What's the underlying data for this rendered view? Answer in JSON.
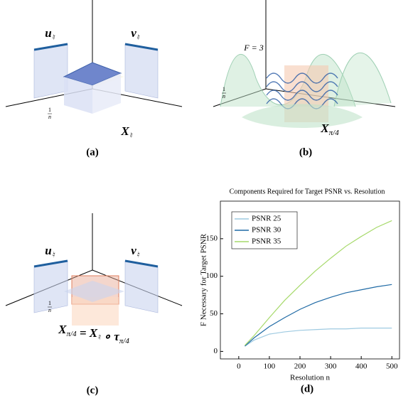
{
  "panels": [
    {
      "label": "(a)",
      "u": {
        "main": "u",
        "sub": "♮"
      },
      "v": {
        "main": "v",
        "sub": "♮"
      },
      "frac": {
        "num": "1",
        "den": "n"
      },
      "x": {
        "main": "X",
        "sub": "♮"
      }
    },
    {
      "label": "(b)",
      "f": "F = 3",
      "frac": {
        "num": "1",
        "den": "n"
      },
      "x": {
        "main": "X",
        "sub": "π/4"
      }
    },
    {
      "label": "(c)",
      "u": {
        "main": "u",
        "sub": "♮"
      },
      "v": {
        "main": "v",
        "sub": "♮"
      },
      "frac": {
        "num": "1",
        "den": "n"
      },
      "equation": [
        {
          "main": "X",
          "sub": "π/4"
        },
        {
          "main": " = X",
          "sub": "♮"
        },
        {
          "main": " ∘ τ",
          "sub": "π/4"
        }
      ]
    },
    {
      "label": "(d)"
    }
  ],
  "chart_data": {
    "type": "line",
    "title": "Components Required for Target PSNR vs. Resolution",
    "x_label": "Resolution n",
    "y_label": "F Necessary for Target PSNR",
    "x": [
      20,
      50,
      100,
      150,
      200,
      250,
      300,
      350,
      400,
      450,
      500
    ],
    "series": [
      {
        "name": "PSNR 25",
        "color": "#9ecae1",
        "values": [
          7,
          15,
          23,
          26,
          28,
          29,
          30,
          30,
          31,
          31,
          31
        ]
      },
      {
        "name": "PSNR 30",
        "color": "#1f6aa5",
        "values": [
          7,
          18,
          33,
          45,
          56,
          65,
          72,
          78,
          82,
          86,
          89
        ]
      },
      {
        "name": "PSNR 35",
        "color": "#a6d96a",
        "values": [
          8,
          21,
          45,
          68,
          88,
          107,
          124,
          140,
          153,
          165,
          174
        ]
      }
    ],
    "xlim": [
      -60,
      525
    ],
    "ylim": [
      -10,
      200
    ],
    "xticks": [
      0,
      100,
      200,
      300,
      400,
      500
    ],
    "yticks": [
      0,
      50,
      100,
      150
    ],
    "legend": "top-left",
    "grid": false
  }
}
